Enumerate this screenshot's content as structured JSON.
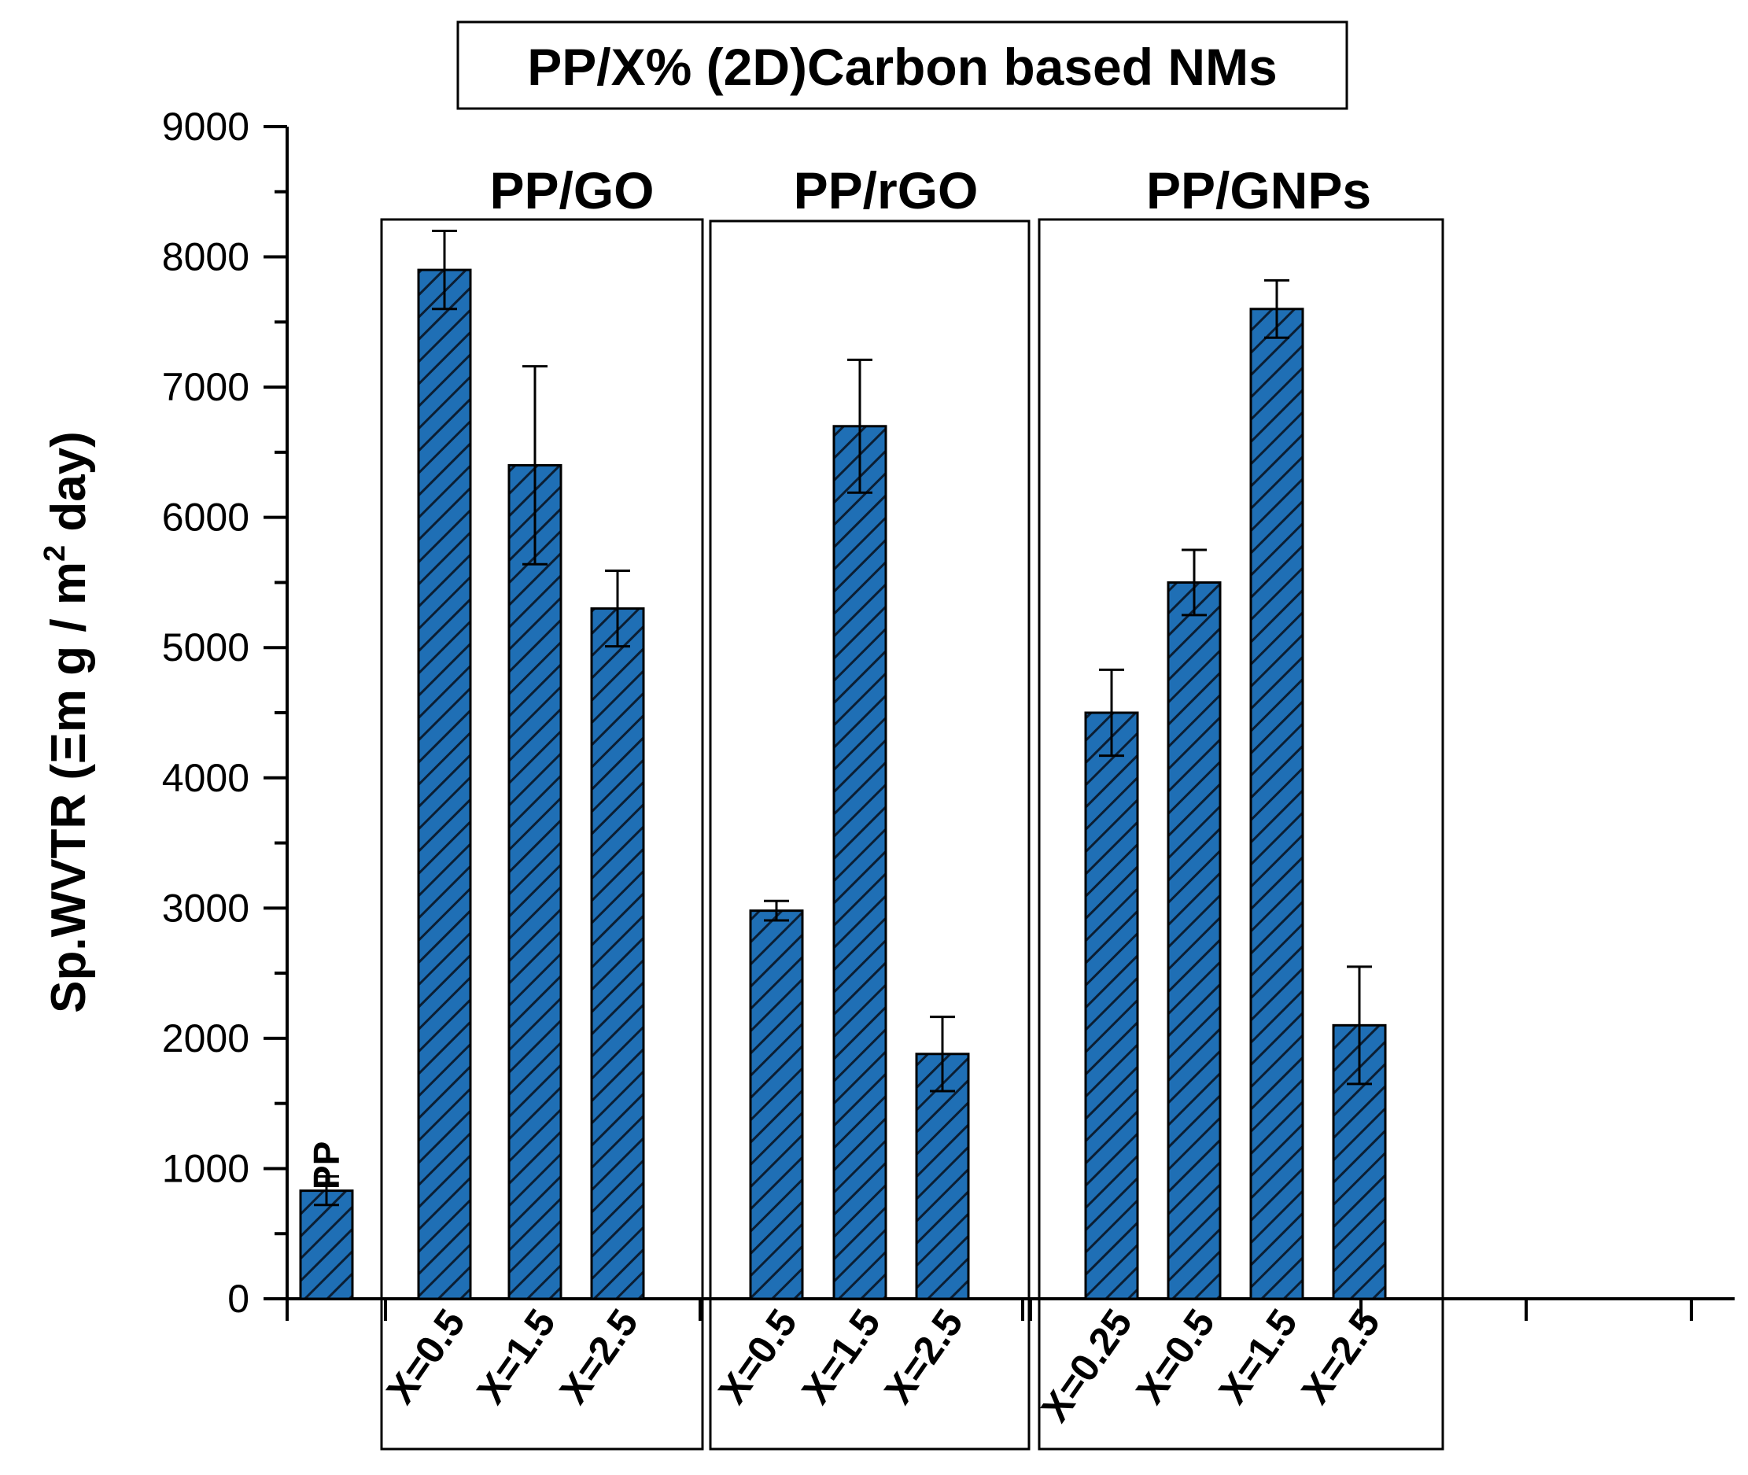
{
  "chart_data": {
    "type": "bar",
    "title": "PP/X% (2D)Carbon based NMs",
    "xlabel": "",
    "ylabel": "Sp.WVTR (Ξm g / m² day)",
    "ylabel_main": "Sp.WVTR (Ξm g / m",
    "ylabel_sup": "2",
    "ylabel_tail": " day)",
    "ylim": [
      0,
      9000
    ],
    "yticks": [
      0,
      1000,
      2000,
      3000,
      4000,
      5000,
      6000,
      7000,
      8000,
      9000
    ],
    "grid": false,
    "bar_color": "#1f6fb5",
    "hatch": "diagonal",
    "baseline": {
      "label": "PP",
      "value": 830,
      "error": 110
    },
    "groups": [
      {
        "name": "PP/GO",
        "categories": [
          "X=0.5",
          "X=1.5",
          "X=2.5"
        ],
        "values": [
          7900,
          6400,
          5300
        ],
        "errors": [
          300,
          760,
          290
        ]
      },
      {
        "name": "PP/rGO",
        "categories": [
          "X=0.5",
          "X=1.5",
          "X=2.5"
        ],
        "values": [
          2980,
          6700,
          1880
        ],
        "errors": [
          75,
          510,
          285
        ]
      },
      {
        "name": "PP/GNPs",
        "categories": [
          "X=0.25",
          "X=0.5",
          "X=1.5",
          "X=2.5"
        ],
        "values": [
          4500,
          5500,
          7600,
          2100
        ],
        "errors": [
          330,
          250,
          220,
          450
        ]
      }
    ]
  }
}
